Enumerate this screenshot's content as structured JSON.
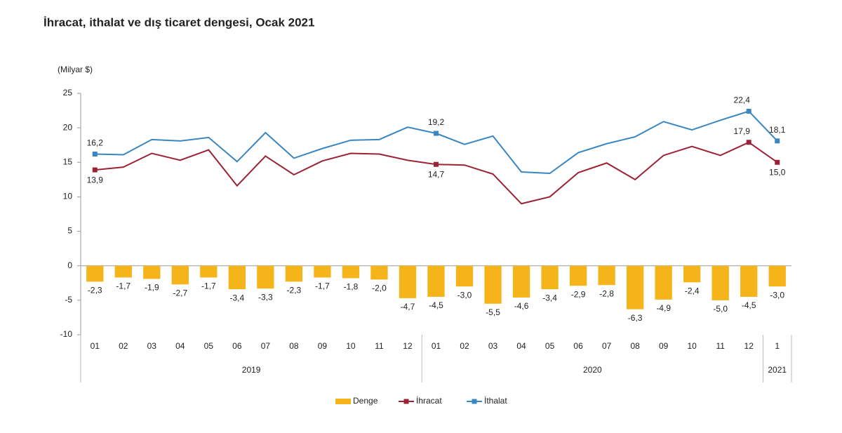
{
  "chart_data": {
    "type": "combo",
    "title": "İhracat, ithalat ve dış ticaret dengesi, Ocak 2021",
    "y_label": "(Milyar $)",
    "categories": [
      "01",
      "02",
      "03",
      "04",
      "05",
      "06",
      "07",
      "08",
      "09",
      "10",
      "11",
      "12",
      "01",
      "02",
      "03",
      "04",
      "05",
      "06",
      "07",
      "08",
      "09",
      "10",
      "11",
      "12",
      "1"
    ],
    "groups": [
      "2019",
      "2020",
      "2021"
    ],
    "ylim": [
      -10,
      25
    ],
    "yticks": [
      -10,
      -5,
      0,
      5,
      10,
      15,
      20,
      25
    ],
    "series": [
      {
        "name": "Denge",
        "type": "bar",
        "color": "#f4b41a",
        "values": [
          -2.3,
          -1.7,
          -1.9,
          -2.7,
          -1.7,
          -3.4,
          -3.3,
          -2.3,
          -1.7,
          -1.8,
          -2.0,
          -4.7,
          -4.5,
          -3.0,
          -5.5,
          -4.6,
          -3.4,
          -2.9,
          -2.8,
          -6.3,
          -4.9,
          -2.4,
          -5.0,
          -4.5,
          -3.0
        ],
        "value_labels": [
          "-2,3",
          "-1,7",
          "-1,9",
          "-2,7",
          "-1,7",
          "-3,4",
          "-3,3",
          "-2,3",
          "-1,7",
          "-1,8",
          "-2,0",
          "-4,7",
          "-4,5",
          "-3,0",
          "-5,5",
          "-4,6",
          "-3,4",
          "-2,9",
          "-2,8",
          "-6,3",
          "-4,9",
          "-2,4",
          "-5,0",
          "-4,5",
          "-3,0"
        ]
      },
      {
        "name": "İhracat",
        "type": "line",
        "color": "#9b2335",
        "values": [
          13.9,
          14.3,
          16.3,
          15.3,
          16.8,
          11.6,
          15.9,
          13.2,
          15.2,
          16.3,
          16.2,
          15.3,
          14.7,
          14.6,
          13.3,
          9.0,
          10.0,
          13.5,
          14.9,
          12.5,
          16.0,
          17.3,
          16.0,
          17.9,
          15.0
        ],
        "value_labels": [
          "13,9",
          null,
          null,
          null,
          null,
          null,
          null,
          null,
          null,
          null,
          null,
          null,
          "14,7",
          null,
          null,
          null,
          null,
          null,
          null,
          null,
          null,
          null,
          null,
          "17,9",
          "15,0"
        ]
      },
      {
        "name": "İthalat",
        "type": "line",
        "color": "#3a86c0",
        "values": [
          16.2,
          16.1,
          18.3,
          18.1,
          18.6,
          15.1,
          19.3,
          15.6,
          17.0,
          18.2,
          18.3,
          20.1,
          19.2,
          17.6,
          18.8,
          13.6,
          13.4,
          16.4,
          17.7,
          18.7,
          20.9,
          19.7,
          21.1,
          22.4,
          18.1
        ],
        "value_labels": [
          "16,2",
          null,
          null,
          null,
          null,
          null,
          null,
          null,
          null,
          null,
          null,
          null,
          "19,2",
          null,
          null,
          null,
          null,
          null,
          null,
          null,
          null,
          null,
          null,
          "22,4",
          "18,1"
        ]
      }
    ]
  }
}
